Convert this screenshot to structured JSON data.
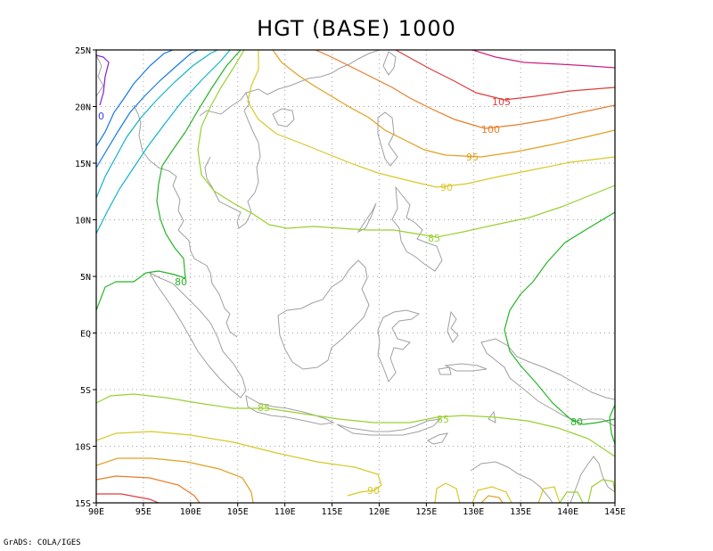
{
  "title": "HGT (BASE) 1000",
  "credit": "GrADS: COLA/IGES",
  "lon_labels": [
    "90E",
    "95E",
    "100E",
    "105E",
    "110E",
    "115E",
    "120E",
    "125E",
    "130E",
    "135E",
    "140E",
    "145E"
  ],
  "lat_labels": [
    "25N",
    "20N",
    "15N",
    "10N",
    "5N",
    "EQ",
    "5S",
    "10S",
    "15S"
  ],
  "contour_labels": [
    {
      "text": "105",
      "color": "#e03c3c"
    },
    {
      "text": "100",
      "color": "#e87c28"
    },
    {
      "text": "95",
      "color": "#e0a020"
    },
    {
      "text": "90",
      "color": "#d8c828"
    },
    {
      "text": "85",
      "color": "#98d030"
    },
    {
      "text": "80",
      "color": "#28b428"
    },
    {
      "text": "85",
      "color": "#98d030"
    },
    {
      "text": "85",
      "color": "#98d030"
    },
    {
      "text": "90",
      "color": "#d8c828"
    },
    {
      "text": "80",
      "color": "#28b428"
    },
    {
      "text": "0",
      "color": "#4040e0"
    }
  ],
  "colors": {
    "coast": "#a0a0a0",
    "grid": "#a0a0a0",
    "c110": "#d02080",
    "c105": "#e03c3c",
    "c100": "#e87c28",
    "c95": "#e0a020",
    "c90": "#d8c828",
    "c85": "#98d030",
    "c80": "#28b428",
    "c_cyan": "#10b4c8",
    "c_blue": "#1478e6",
    "c_purple": "#8020d0"
  },
  "map": {
    "lon_range": [
      90,
      145
    ],
    "lat_range": [
      -15,
      25
    ],
    "grid_interval_deg": 5,
    "grid": "dotted"
  }
}
